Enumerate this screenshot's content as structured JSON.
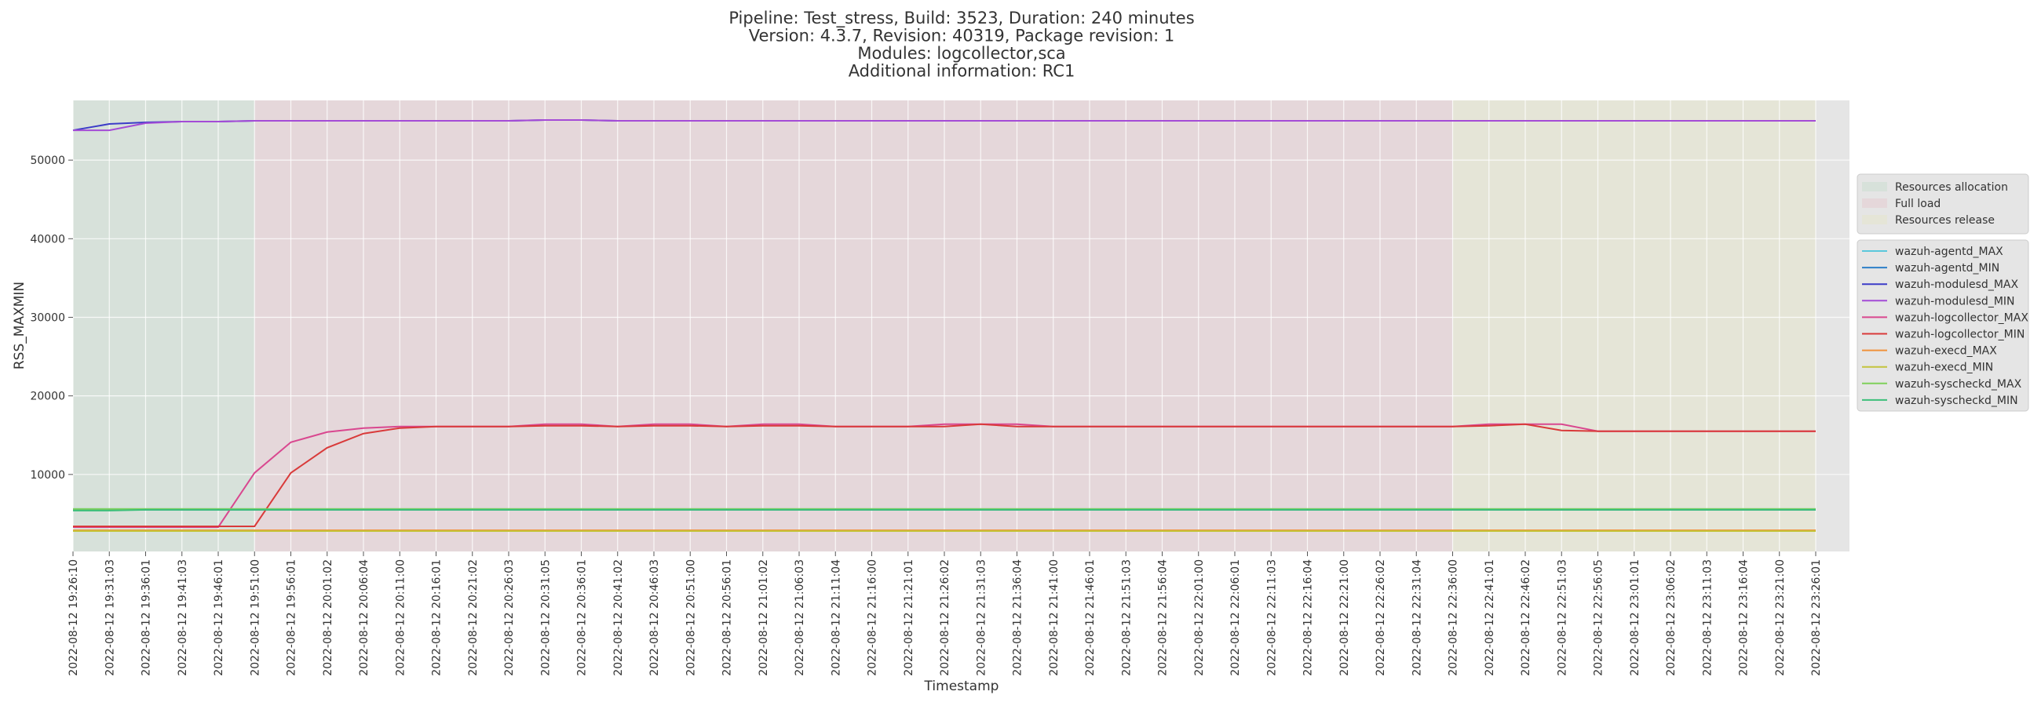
{
  "chart_data": {
    "type": "line",
    "title_lines": [
      "Pipeline: Test_stress, Build: 3523, Duration: 240 minutes",
      "Version: 4.3.7, Revision: 40319, Package revision: 1",
      "Modules: logcollector,sca",
      "Additional information: RC1"
    ],
    "x_label": "Timestamp",
    "y_label": "RSS_MAXMIN",
    "categories": [
      "2022-08-12 19:26:10",
      "2022-08-12 19:31:03",
      "2022-08-12 19:36:01",
      "2022-08-12 19:41:03",
      "2022-08-12 19:46:01",
      "2022-08-12 19:51:00",
      "2022-08-12 19:56:01",
      "2022-08-12 20:01:02",
      "2022-08-12 20:06:04",
      "2022-08-12 20:11:00",
      "2022-08-12 20:16:01",
      "2022-08-12 20:21:02",
      "2022-08-12 20:26:03",
      "2022-08-12 20:31:05",
      "2022-08-12 20:36:01",
      "2022-08-12 20:41:02",
      "2022-08-12 20:46:03",
      "2022-08-12 20:51:00",
      "2022-08-12 20:56:01",
      "2022-08-12 21:01:02",
      "2022-08-12 21:06:03",
      "2022-08-12 21:11:04",
      "2022-08-12 21:16:00",
      "2022-08-12 21:21:01",
      "2022-08-12 21:26:02",
      "2022-08-12 21:31:03",
      "2022-08-12 21:36:04",
      "2022-08-12 21:41:00",
      "2022-08-12 21:46:01",
      "2022-08-12 21:51:03",
      "2022-08-12 21:56:04",
      "2022-08-12 22:01:00",
      "2022-08-12 22:06:01",
      "2022-08-12 22:11:03",
      "2022-08-12 22:16:04",
      "2022-08-12 22:21:00",
      "2022-08-12 22:26:02",
      "2022-08-12 22:31:04",
      "2022-08-12 22:36:00",
      "2022-08-12 22:41:01",
      "2022-08-12 22:46:02",
      "2022-08-12 22:51:03",
      "2022-08-12 22:56:05",
      "2022-08-12 23:01:01",
      "2022-08-12 23:06:02",
      "2022-08-12 23:11:03",
      "2022-08-12 23:16:04",
      "2022-08-12 23:21:00",
      "2022-08-12 23:26:01"
    ],
    "phases": [
      {
        "name": "Resources allocation",
        "start": 0,
        "end": 5,
        "color": "#d7e1da"
      },
      {
        "name": "Full load",
        "start": 5,
        "end": 38,
        "color": "#e5d7da"
      },
      {
        "name": "Resources release",
        "start": 38,
        "end": 48,
        "color": "#e5e5d7"
      }
    ],
    "ylim": [
      200,
      57600
    ],
    "yticks": [
      10000,
      20000,
      30000,
      40000,
      50000
    ],
    "grid": true,
    "series": [
      {
        "name": "wazuh-agentd_MAX",
        "color": "#5bc8dc",
        "values": [
          5600,
          5600,
          5600,
          5600,
          5600,
          5600,
          5600,
          5600,
          5600,
          5600,
          5600,
          5600,
          5600,
          5600,
          5600,
          5600,
          5600,
          5600,
          5600,
          5600,
          5600,
          5600,
          5600,
          5600,
          5600,
          5600,
          5600,
          5600,
          5600,
          5600,
          5600,
          5600,
          5600,
          5600,
          5600,
          5600,
          5600,
          5600,
          5600,
          5600,
          5600,
          5600,
          5600,
          5600,
          5600,
          5600,
          5600,
          5600,
          5600
        ]
      },
      {
        "name": "wazuh-agentd_MIN",
        "color": "#2c7fc8",
        "values": [
          5500,
          5500,
          5500,
          5500,
          5500,
          5500,
          5500,
          5500,
          5500,
          5500,
          5500,
          5500,
          5500,
          5500,
          5500,
          5500,
          5500,
          5500,
          5500,
          5500,
          5500,
          5500,
          5500,
          5500,
          5500,
          5500,
          5500,
          5500,
          5500,
          5500,
          5500,
          5500,
          5500,
          5500,
          5500,
          5500,
          5500,
          5500,
          5500,
          5500,
          5500,
          5500,
          5500,
          5500,
          5500,
          5500,
          5500,
          5500,
          5500
        ]
      },
      {
        "name": "wazuh-modulesd_MAX",
        "color": "#3c3cc8",
        "values": [
          53800,
          54600,
          54800,
          54900,
          54900,
          55000,
          55000,
          55000,
          55000,
          55000,
          55000,
          55000,
          55000,
          55100,
          55100,
          55000,
          55000,
          55000,
          55000,
          55000,
          55000,
          55000,
          55000,
          55000,
          55000,
          55000,
          55000,
          55000,
          55000,
          55000,
          55000,
          55000,
          55000,
          55000,
          55000,
          55000,
          55000,
          55000,
          55000,
          55000,
          55000,
          55000,
          55000,
          55000,
          55000,
          55000,
          55000,
          55000,
          55000
        ]
      },
      {
        "name": "wazuh-modulesd_MIN",
        "color": "#a44bd6",
        "values": [
          53800,
          53800,
          54700,
          54900,
          54900,
          55000,
          55000,
          55000,
          55000,
          55000,
          55000,
          55000,
          55000,
          55100,
          55100,
          55000,
          55000,
          55000,
          55000,
          55000,
          55000,
          55000,
          55000,
          55000,
          55000,
          55000,
          55000,
          55000,
          55000,
          55000,
          55000,
          55000,
          55000,
          55000,
          55000,
          55000,
          55000,
          55000,
          55000,
          55000,
          55000,
          55000,
          55000,
          55000,
          55000,
          55000,
          55000,
          55000,
          55000
        ]
      },
      {
        "name": "wazuh-logcollector_MAX",
        "color": "#d9478f",
        "values": [
          3300,
          3300,
          3300,
          3300,
          3300,
          10200,
          14100,
          15400,
          15900,
          16100,
          16100,
          16100,
          16100,
          16400,
          16400,
          16100,
          16400,
          16400,
          16100,
          16400,
          16400,
          16100,
          16100,
          16100,
          16400,
          16400,
          16400,
          16100,
          16100,
          16100,
          16100,
          16100,
          16100,
          16100,
          16100,
          16100,
          16100,
          16100,
          16100,
          16400,
          16400,
          16400,
          15500,
          15500,
          15500,
          15500,
          15500,
          15500,
          15500
        ]
      },
      {
        "name": "wazuh-logcollector_MIN",
        "color": "#d93a3a",
        "values": [
          3400,
          3400,
          3400,
          3400,
          3400,
          3400,
          10200,
          13400,
          15200,
          15900,
          16100,
          16100,
          16100,
          16200,
          16200,
          16100,
          16200,
          16200,
          16100,
          16200,
          16200,
          16100,
          16100,
          16100,
          16100,
          16400,
          16100,
          16100,
          16100,
          16100,
          16100,
          16100,
          16100,
          16100,
          16100,
          16100,
          16100,
          16100,
          16100,
          16200,
          16400,
          15600,
          15500,
          15500,
          15500,
          15500,
          15500,
          15500,
          15500
        ]
      },
      {
        "name": "wazuh-execd_MAX",
        "color": "#f0923a",
        "values": [
          2900,
          2900,
          2900,
          2900,
          2900,
          2900,
          2900,
          2900,
          2900,
          2900,
          2900,
          2900,
          2900,
          2900,
          2900,
          2900,
          2900,
          2900,
          2900,
          2900,
          2900,
          2900,
          2900,
          2900,
          2900,
          2900,
          2900,
          2900,
          2900,
          2900,
          2900,
          2900,
          2900,
          2900,
          2900,
          2900,
          2900,
          2900,
          2900,
          2900,
          2900,
          2900,
          2900,
          2900,
          2900,
          2900,
          2900,
          2900,
          2900
        ]
      },
      {
        "name": "wazuh-execd_MIN",
        "color": "#c4c43c",
        "values": [
          2800,
          2800,
          2800,
          2800,
          2800,
          2800,
          2800,
          2800,
          2800,
          2800,
          2800,
          2800,
          2800,
          2800,
          2800,
          2800,
          2800,
          2800,
          2800,
          2800,
          2800,
          2800,
          2800,
          2800,
          2800,
          2800,
          2800,
          2800,
          2800,
          2800,
          2800,
          2800,
          2800,
          2800,
          2800,
          2800,
          2800,
          2800,
          2800,
          2800,
          2800,
          2800,
          2800,
          2800,
          2800,
          2800,
          2800,
          2800,
          2800
        ]
      },
      {
        "name": "wazuh-syscheckd_MAX",
        "color": "#7fd05a",
        "values": [
          5600,
          5600,
          5600,
          5600,
          5600,
          5600,
          5600,
          5600,
          5600,
          5600,
          5600,
          5600,
          5600,
          5600,
          5600,
          5600,
          5600,
          5600,
          5600,
          5600,
          5600,
          5600,
          5600,
          5600,
          5600,
          5600,
          5600,
          5600,
          5600,
          5600,
          5600,
          5600,
          5600,
          5600,
          5600,
          5600,
          5600,
          5600,
          5600,
          5600,
          5600,
          5600,
          5600,
          5600,
          5600,
          5600,
          5600,
          5600,
          5600
        ]
      },
      {
        "name": "wazuh-syscheckd_MIN",
        "color": "#3cbf7a",
        "values": [
          5400,
          5400,
          5500,
          5500,
          5500,
          5500,
          5500,
          5500,
          5500,
          5500,
          5500,
          5500,
          5500,
          5500,
          5500,
          5500,
          5500,
          5500,
          5500,
          5500,
          5500,
          5500,
          5500,
          5500,
          5500,
          5500,
          5500,
          5500,
          5500,
          5500,
          5500,
          5500,
          5500,
          5500,
          5500,
          5500,
          5500,
          5500,
          5500,
          5500,
          5500,
          5500,
          5500,
          5500,
          5500,
          5500,
          5500,
          5500,
          5500
        ]
      }
    ]
  }
}
